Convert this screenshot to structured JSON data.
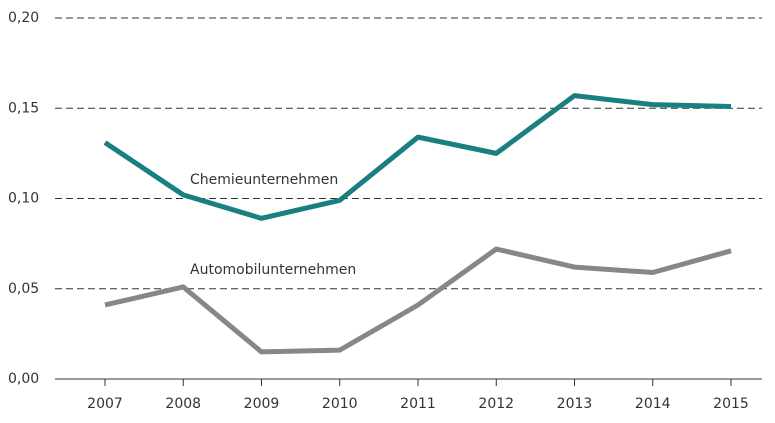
{
  "chart_data": {
    "type": "line",
    "categories": [
      "2007",
      "2008",
      "2009",
      "2010",
      "2011",
      "2012",
      "2013",
      "2014",
      "2015"
    ],
    "series": [
      {
        "name": "Chemieunternehmen",
        "color": "#1a7f80",
        "values": [
          0.131,
          0.102,
          0.089,
          0.099,
          0.134,
          0.125,
          0.157,
          0.152,
          0.151
        ]
      },
      {
        "name": "Automobilunternehmen",
        "color": "#878787",
        "values": [
          0.041,
          0.051,
          0.015,
          0.016,
          0.041,
          0.072,
          0.062,
          0.059,
          0.071
        ]
      }
    ],
    "ylim": [
      0,
      0.2
    ],
    "yticks": [
      {
        "value": 0,
        "label": "0,00"
      },
      {
        "value": 0.05,
        "label": "0,05"
      },
      {
        "value": 0.1,
        "label": "0,10"
      },
      {
        "value": 0.15,
        "label": "0,15"
      },
      {
        "value": 0.2,
        "label": "0,20"
      }
    ],
    "grid": true
  }
}
